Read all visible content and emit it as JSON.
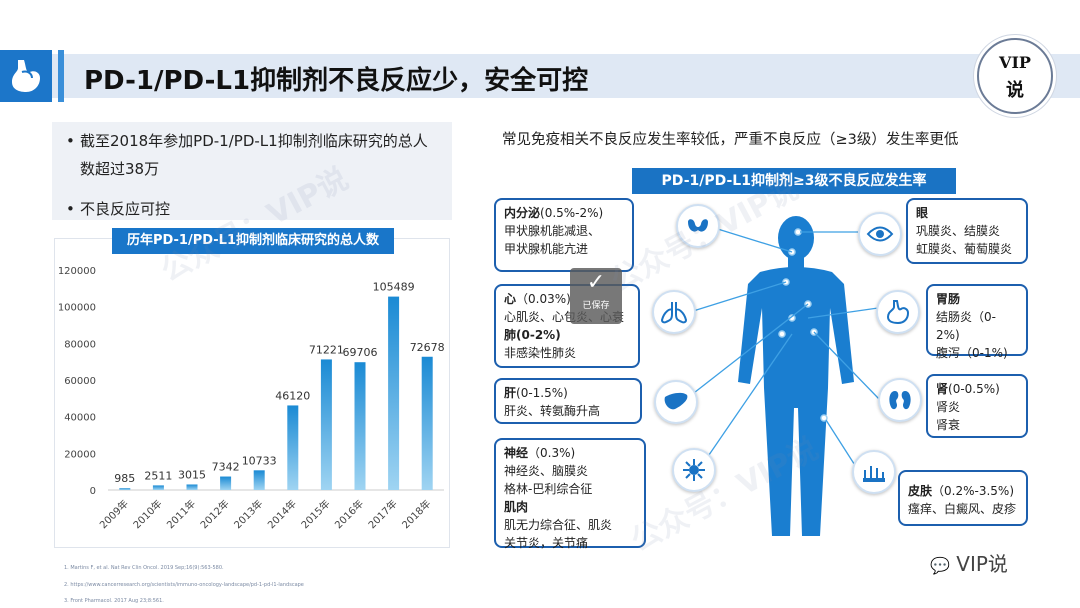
{
  "header": {
    "title": "PD-1/PD-L1抑制剂不良反应少，安全可控",
    "badge_line1": "VIP",
    "badge_line2": "说"
  },
  "left": {
    "bullets": [
      {
        "line1": "截至2018年参加PD-1/PD-L1抑制剂临床研究的总人",
        "line2": "数超过38万"
      },
      {
        "line1": "不良反应可控",
        "line2": ""
      }
    ]
  },
  "chart_data": {
    "type": "bar",
    "title": "历年PD-1/PD-L1抑制剂临床研究的总人数",
    "categories": [
      "2009年",
      "2010年",
      "2011年",
      "2012年",
      "2013年",
      "2014年",
      "2015年",
      "2016年",
      "2017年",
      "2018年"
    ],
    "values": [
      985,
      2511,
      3015,
      7342,
      10733,
      46120,
      71221,
      69706,
      105489,
      72678
    ],
    "yticks": [
      "0",
      "20000",
      "40000",
      "60000",
      "80000",
      "100000",
      "120000"
    ],
    "ylim": [
      0,
      120000
    ],
    "grid": false,
    "bar_color_top": "#1a8ad4",
    "bar_color_bottom": "#9fd4f2"
  },
  "right": {
    "heading": "常见免疫相关不良反应发生率较低，严重不良反应（≥3级）发生率更低",
    "banner": "PD-1/PD-L1抑制剂≥3级不良反应发生率",
    "cards": {
      "endocrine": {
        "title": "内分泌",
        "rate": "(0.5%-2%)",
        "l1": "甲状腺机能减退、",
        "l2": "甲状腺机能亢进"
      },
      "heart": {
        "title": "心",
        "rate": "（0.03%)",
        "l1": "心肌炎、心包炎、心衰",
        "title2": "肺",
        "rate2": "(0-2%)",
        "l2": "非感染性肺炎"
      },
      "liver": {
        "title": "肝",
        "rate": "(0-1.5%)",
        "l1": "肝炎、转氨酶升高"
      },
      "nerve": {
        "title": "神经",
        "rate": "（0.3%)",
        "l1": "神经炎、脑膜炎",
        "l2": "格林-巴利综合征",
        "title2": "肌肉",
        "l3": "肌无力综合征、肌炎",
        "l4": "关节炎，关节痛"
      },
      "eye": {
        "title": "眼",
        "l1": "巩膜炎、结膜炎",
        "l2": "虹膜炎、葡萄膜炎"
      },
      "gut": {
        "title": "胃肠",
        "l1": "结肠炎（0-",
        "l2": "2%)",
        "l3": "腹泻（0-1%)"
      },
      "kidney": {
        "title": "肾",
        "rate": "(0-0.5%)",
        "l1": "肾炎",
        "l2": "肾衰"
      },
      "skin": {
        "title": "皮肤",
        "rate": "（0.2%-3.5%)",
        "l1": "瘙痒、白癜风、皮疹"
      }
    }
  },
  "overlay": {
    "saved_label": "已保存",
    "watermark": "公众号：VIP说"
  },
  "refs": [
    "1.  Martins F, et al. Nat Rev Clin Oncol. 2019 Sep;16(9):563-580.",
    "2.  https://www.cancerresearch.org/scientists/immuno-oncology-landscape/pd-1-pd-l1-landscape",
    "3.  Front Pharmacol. 2017 Aug 23;8:561."
  ],
  "footer": {
    "logo_text": "VIP说"
  },
  "colors": {
    "accent": "#1a73c4",
    "card_border": "#1c5fae",
    "body": "#1a7ed0"
  }
}
